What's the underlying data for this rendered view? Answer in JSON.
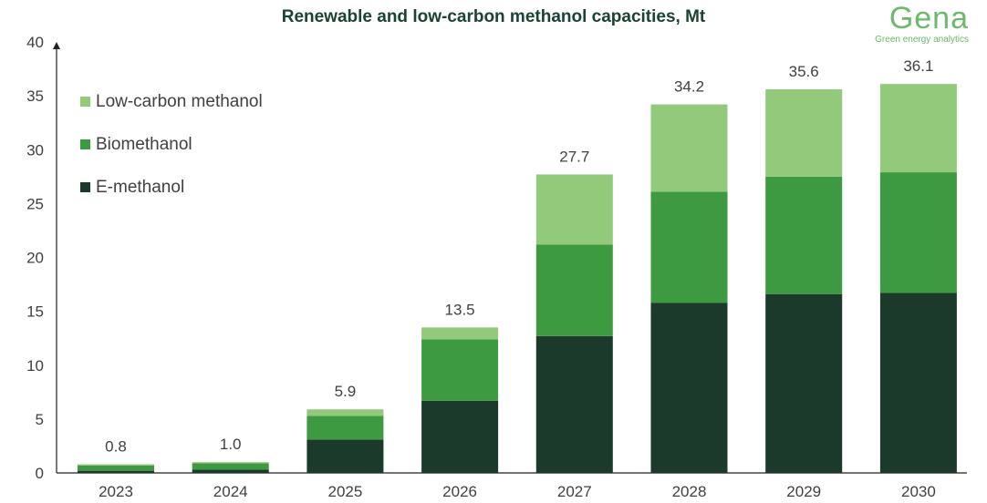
{
  "chart_data": {
    "type": "bar",
    "stacked": true,
    "title": "Renewable and low-carbon methanol capacities, Mt",
    "categories": [
      "2023",
      "2024",
      "2025",
      "2026",
      "2027",
      "2028",
      "2029",
      "2030"
    ],
    "series": [
      {
        "name": "E-methanol",
        "color": "#1b3a2b",
        "values": [
          0.2,
          0.3,
          3.1,
          6.7,
          12.7,
          15.8,
          16.6,
          16.7
        ]
      },
      {
        "name": "Biomethanol",
        "color": "#3d9a40",
        "values": [
          0.5,
          0.6,
          2.2,
          5.7,
          8.5,
          10.3,
          10.9,
          11.2
        ]
      },
      {
        "name": "Low-carbon methanol",
        "color": "#93c97a",
        "values": [
          0.1,
          0.1,
          0.6,
          1.1,
          6.5,
          8.1,
          8.1,
          8.2
        ]
      }
    ],
    "totals": [
      "0.8",
      "1.0",
      "5.9",
      "13.5",
      "27.7",
      "34.2",
      "35.6",
      "36.1"
    ],
    "ylim": [
      0,
      40
    ],
    "yticks": [
      0,
      5,
      10,
      15,
      20,
      25,
      30,
      35,
      40
    ],
    "grid": false,
    "legend_position": "top-left",
    "legend_order": [
      "Low-carbon methanol",
      "Biomethanol",
      "E-methanol"
    ]
  },
  "logo": {
    "word": "Gena",
    "tagline": "Green energy analytics"
  }
}
